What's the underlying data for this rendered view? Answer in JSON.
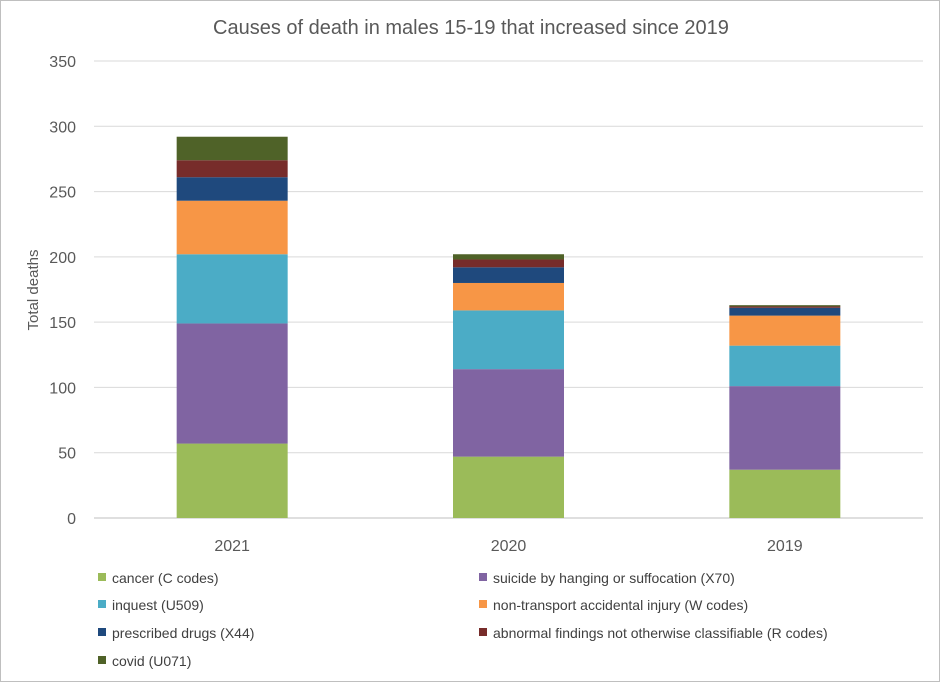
{
  "chart_data": {
    "type": "bar",
    "stacked": true,
    "title": "Causes of death in males 15-19 that increased since 2019",
    "xlabel": "",
    "ylabel": "Total deaths",
    "ylim": [
      0,
      350
    ],
    "yticks": [
      0,
      50,
      100,
      150,
      200,
      250,
      300,
      350
    ],
    "grid": true,
    "legend_position": "bottom",
    "categories": [
      "2021",
      "2020",
      "2019"
    ],
    "series": [
      {
        "name": "cancer (C codes)",
        "color": "#9BBB59",
        "values": [
          57,
          47,
          37
        ]
      },
      {
        "name": "suicide by hanging or suffocation (X70)",
        "color": "#8064A2",
        "values": [
          92,
          67,
          64
        ]
      },
      {
        "name": "inquest (U509)",
        "color": "#4BACC6",
        "values": [
          53,
          45,
          31
        ]
      },
      {
        "name": "non-transport accidental injury (W codes)",
        "color": "#F79646",
        "values": [
          41,
          21,
          23
        ]
      },
      {
        "name": "prescribed drugs (X44)",
        "color": "#1F497D",
        "values": [
          18,
          12,
          6
        ]
      },
      {
        "name": "abnormal findings not otherwise classifiable (R codes)",
        "color": "#772C2A",
        "values": [
          13,
          6,
          1
        ]
      },
      {
        "name": "covid (U071)",
        "color": "#4F6228",
        "values": [
          18,
          4,
          1
        ]
      }
    ]
  }
}
